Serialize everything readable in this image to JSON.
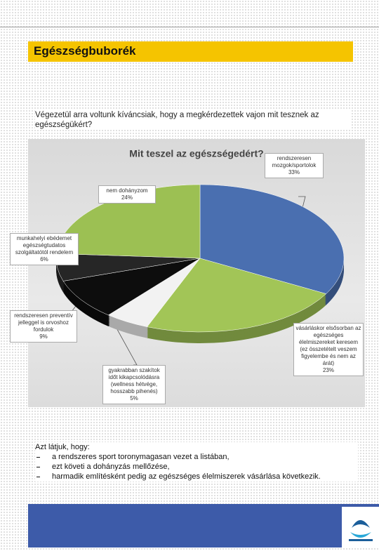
{
  "header": {
    "title": "Egészségbuborék"
  },
  "intro": "Végezetül arra voltunk kíváncsiak, hogy a megkérdezettek vajon mit tesznek az egészségükért?",
  "chart_data": {
    "type": "pie",
    "title": "Mit teszel az egészségedért?",
    "categories": [
      "rendszeresen mozgok/sportolok",
      "vásárláskor elsősorban az egészséges élelmiszereket keresem (ez összetételt veszem figyelembe és nem az árát)",
      "gyakrabban szakítok időt kikapcsolódásra (wellness hétvége, hosszabb pihenés)",
      "rendszeresen preventív jelleggel is orvoshoz fordulok",
      "munkahelyi ebédemet egészségtudatos szolgáltatótól rendelem",
      "nem dohányzom"
    ],
    "values": [
      33,
      23,
      5,
      9,
      6,
      24
    ],
    "value_labels": [
      "33%",
      "23%",
      "5%",
      "9%",
      "6%",
      "24%"
    ],
    "colors": [
      "#4a6fb0",
      "#a2c557",
      "#f2f2f2",
      "#0d0d0d",
      "#262626",
      "#9cc053"
    ]
  },
  "body": {
    "lead": "Azt látjuk, hogy:",
    "items": [
      "a rendszeres sport toronymagasan vezet a listában,",
      "ezt követi a dohányzás mellőzése,",
      "harmadik említésként pedig az egészséges élelmiszerek vásárlása következik."
    ]
  }
}
